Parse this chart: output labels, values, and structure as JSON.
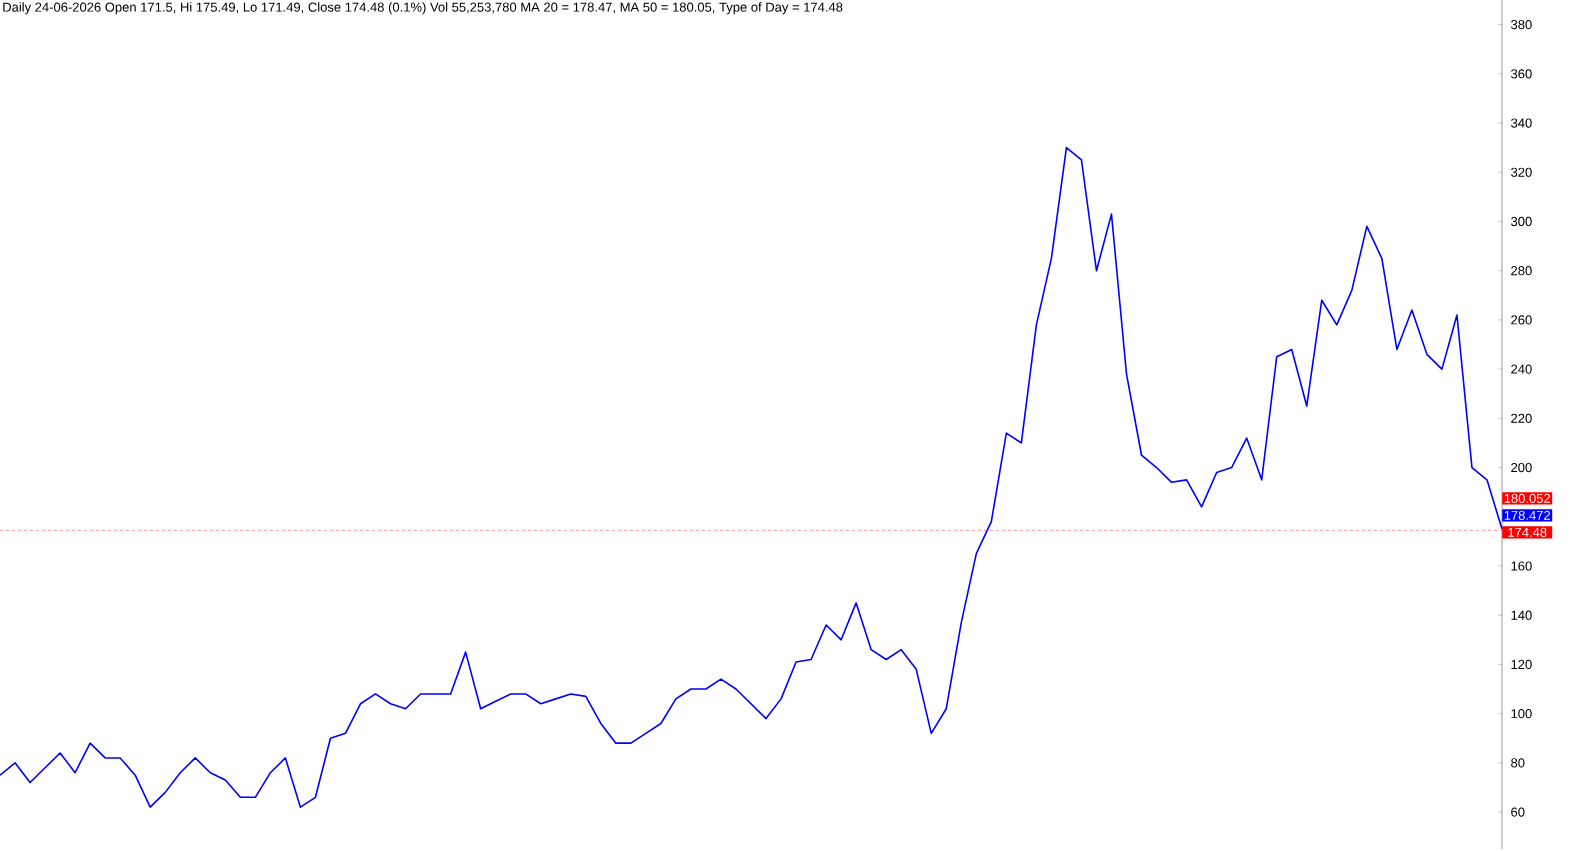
{
  "chart_data": {
    "type": "line",
    "title": "Daily 24-06-2026 Open 171.5, Hi 175.49, Lo 171.49, Close 174.48 (0.1%) Vol 55,253,780 MA 20 = 178.47, MA 50 = 180.05, Type of Day = 174.48",
    "categories": [
      null,
      null,
      null,
      null,
      null,
      null,
      null,
      null,
      null,
      null,
      null,
      null,
      null,
      null,
      null,
      null,
      null,
      null,
      null,
      null,
      null,
      null,
      null,
      null,
      null,
      null,
      null,
      null,
      null,
      null,
      null,
      null,
      null,
      null,
      null,
      null,
      null,
      null,
      null,
      null,
      null,
      null,
      null,
      null,
      null,
      null,
      null,
      null,
      null,
      null,
      null,
      null,
      null,
      null,
      null,
      null,
      null,
      null,
      null,
      null,
      null,
      null,
      null,
      null,
      null,
      null,
      null,
      null,
      null,
      null,
      null,
      null,
      null,
      null,
      null,
      null,
      null,
      null,
      null,
      null,
      null,
      null,
      null,
      null,
      null,
      null,
      null,
      null,
      null,
      null,
      null,
      null,
      null,
      null,
      null,
      null,
      null,
      null,
      null,
      null,
      null
    ],
    "series": [
      {
        "color": "#0000ff",
        "values": [
          75,
          80,
          72,
          78,
          84,
          76,
          88,
          82,
          82,
          75,
          62,
          68,
          76,
          82,
          76,
          73,
          66,
          66,
          76,
          82,
          62,
          66,
          90,
          92,
          104,
          108,
          104,
          102,
          108,
          108,
          108,
          125,
          102,
          105,
          108,
          108,
          104,
          106,
          108,
          107,
          96,
          88,
          88,
          92,
          96,
          106,
          110,
          110,
          114,
          110,
          104,
          98,
          106,
          121,
          122,
          136,
          130,
          145,
          126,
          122,
          126,
          118,
          92,
          102,
          137,
          165,
          178,
          214,
          210,
          258,
          285,
          330,
          325,
          280,
          303,
          238,
          205,
          200,
          194,
          195,
          184,
          198,
          200,
          212,
          195,
          245,
          248,
          225,
          268,
          258,
          272,
          298,
          285,
          248,
          264,
          246,
          240,
          262,
          200,
          195,
          175
        ]
      }
    ],
    "ylim": [
      45,
      390
    ],
    "yticks": [
      60,
      80,
      100,
      120,
      140,
      160,
      200,
      220,
      240,
      260,
      280,
      300,
      320,
      340,
      360,
      380
    ],
    "ref_lines": [
      {
        "axis": "y",
        "value": 174.48,
        "label": "174.48",
        "color": "#ff0000",
        "line_style": "dashed"
      }
    ],
    "annotations": [
      "180.052",
      "178.472"
    ],
    "grid": false
  }
}
